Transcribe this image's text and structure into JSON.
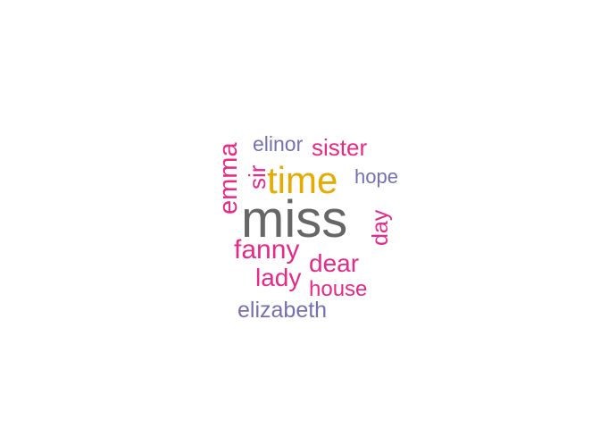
{
  "chart_data": {
    "type": "wordcloud",
    "title": "",
    "colors": {
      "gray": "#666666",
      "gold": "#e6ab02",
      "pink": "#e7298a",
      "purple": "#7570b3"
    },
    "words": [
      {
        "word": "miss",
        "rank": 1,
        "color": "gray",
        "rotated": false
      },
      {
        "word": "time",
        "rank": 2,
        "color": "gold",
        "rotated": false
      },
      {
        "word": "fanny",
        "rank": 3,
        "color": "pink",
        "rotated": false
      },
      {
        "word": "emma",
        "rank": 4,
        "color": "pink",
        "rotated": true
      },
      {
        "word": "dear",
        "rank": 5,
        "color": "pink",
        "rotated": false
      },
      {
        "word": "lady",
        "rank": 6,
        "color": "pink",
        "rotated": false
      },
      {
        "word": "sister",
        "rank": 7,
        "color": "pink",
        "rotated": false
      },
      {
        "word": "sir",
        "rank": 8,
        "color": "pink",
        "rotated": true
      },
      {
        "word": "day",
        "rank": 9,
        "color": "pink",
        "rotated": true
      },
      {
        "word": "house",
        "rank": 10,
        "color": "pink",
        "rotated": false
      },
      {
        "word": "elizabeth",
        "rank": 11,
        "color": "purple",
        "rotated": false
      },
      {
        "word": "elinor",
        "rank": 12,
        "color": "purple",
        "rotated": false
      },
      {
        "word": "hope",
        "rank": 13,
        "color": "purple",
        "rotated": false
      }
    ]
  }
}
